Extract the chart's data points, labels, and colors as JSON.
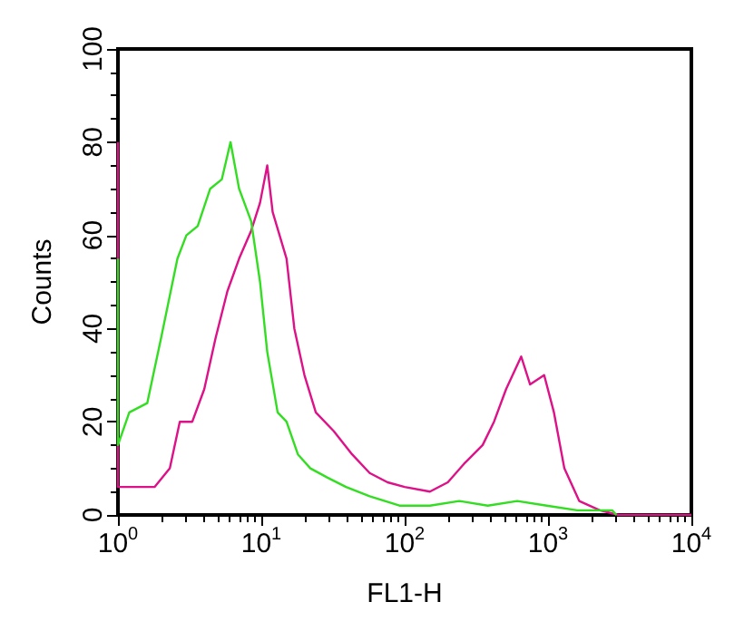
{
  "chart_data": {
    "type": "line",
    "xlabel": "FL1-H",
    "ylabel": "Counts",
    "log": "x",
    "grid": false,
    "marker": "none",
    "line_style": "solid",
    "xlim": [
      1,
      10000
    ],
    "ylim": [
      0,
      100
    ],
    "xticks": [
      {
        "value": 1,
        "label": "10$^{0}$"
      },
      {
        "value": 10,
        "label": "10$^{1}$"
      },
      {
        "value": 100,
        "label": "10$^{2}$"
      },
      {
        "value": 1000,
        "label": "10$^{3}$"
      },
      {
        "value": 10000,
        "label": "10$^{4}$"
      }
    ],
    "yticks": [
      0,
      20,
      40,
      60,
      80,
      100
    ],
    "series": [
      {
        "color": "#33dd22",
        "x": [
          1,
          1,
          1.2,
          1.6,
          2,
          2.6,
          3,
          3.6,
          4.4,
          5.3,
          6.1,
          7,
          8.5,
          9.8,
          11,
          13,
          15,
          18,
          22,
          29,
          39,
          57,
          92,
          150,
          240,
          380,
          610,
          980,
          1600,
          2800,
          3000
        ],
        "values": [
          55,
          15,
          22,
          24,
          38,
          55,
          60,
          62,
          70,
          72,
          80,
          70,
          63,
          50,
          35,
          22,
          20,
          13,
          10,
          8,
          6,
          4,
          2,
          2,
          3,
          2,
          3,
          2,
          1,
          1,
          0
        ]
      },
      {
        "color": "#dd1188",
        "x": [
          1,
          1,
          1.3,
          1.8,
          2.3,
          2.7,
          3.3,
          4,
          4.8,
          5.8,
          7,
          8.5,
          9.8,
          11,
          12,
          15,
          17,
          20,
          24,
          32,
          43,
          57,
          76,
          100,
          150,
          200,
          260,
          350,
          420,
          510,
          650,
          750,
          940,
          1100,
          1300,
          1650,
          2300,
          3100,
          10000
        ],
        "values": [
          80,
          6,
          6,
          6,
          10,
          20,
          20,
          27,
          38,
          48,
          55,
          61,
          67,
          75,
          65,
          55,
          40,
          30,
          22,
          18,
          13,
          9,
          7,
          6,
          5,
          7,
          11,
          15,
          20,
          27,
          34,
          28,
          30,
          22,
          10,
          3,
          1,
          0,
          0
        ]
      }
    ]
  }
}
